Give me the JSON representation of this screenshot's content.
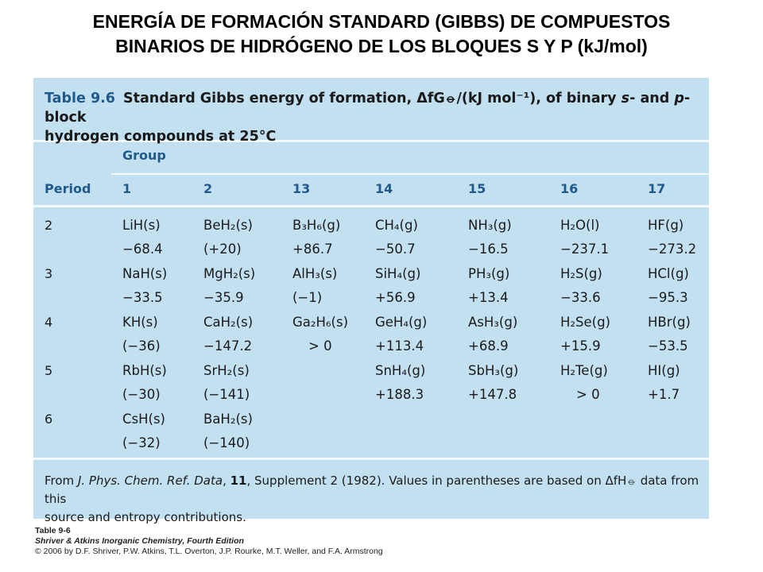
{
  "title": {
    "line1": "ENERGÍA DE FORMACIÓN STANDARD (GIBBS) DE COMPUESTOS",
    "line2": "BINARIOS DE HIDRÓGENO DE LOS BLOQUES S Y P (kJ/mol)"
  },
  "table": {
    "label": "Table 9.6",
    "caption_part1": "Standard Gibbs energy of formation, ",
    "caption_symbol": "ΔfG⦵",
    "caption_part2": "/(kJ mol⁻¹), of binary ",
    "caption_s": "s",
    "caption_part3": "- and ",
    "caption_p": "p",
    "caption_part4": "-block",
    "caption_line2": "hydrogen compounds at 25°C",
    "group_label": "Group",
    "period_label": "Period",
    "groups": [
      "1",
      "2",
      "13",
      "14",
      "15",
      "16",
      "17"
    ],
    "periods": [
      "2",
      "3",
      "4",
      "5",
      "6"
    ],
    "rows": [
      {
        "compounds": [
          "LiH(s)",
          "BeH₂(s)",
          "B₃H₆(g)",
          "CH₄(g)",
          "NH₃(g)",
          "H₂O(l)",
          "HF(g)"
        ],
        "values": [
          "−68.4",
          "(+20)",
          "+86.7",
          "−50.7",
          "−16.5",
          "−237.1",
          "−273.2"
        ]
      },
      {
        "compounds": [
          "NaH(s)",
          "MgH₂(s)",
          "AlH₃(s)",
          "SiH₄(g)",
          "PH₃(g)",
          "H₂S(g)",
          "HCl(g)"
        ],
        "values": [
          "−33.5",
          "−35.9",
          "(−1)",
          "+56.9",
          "+13.4",
          "−33.6",
          "−95.3"
        ]
      },
      {
        "compounds": [
          "KH(s)",
          "CaH₂(s)",
          "Ga₂H₆(s)",
          "GeH₄(g)",
          "AsH₃(g)",
          "H₂Se(g)",
          "HBr(g)"
        ],
        "values": [
          "(−36)",
          "−147.2",
          "> 0",
          "+113.4",
          "+68.9",
          "+15.9",
          "−53.5"
        ]
      },
      {
        "compounds": [
          "RbH(s)",
          "SrH₂(s)",
          "",
          "SnH₄(g)",
          "SbH₃(g)",
          "H₂Te(g)",
          "HI(g)"
        ],
        "values": [
          "(−30)",
          "(−141)",
          "",
          "+188.3",
          "+147.8",
          "> 0",
          "+1.7"
        ]
      },
      {
        "compounds": [
          "CsH(s)",
          "BaH₂(s)",
          "",
          "",
          "",
          "",
          ""
        ],
        "values": [
          "(−32)",
          "(−140)",
          "",
          "",
          "",
          "",
          ""
        ]
      }
    ],
    "footnote_part1": "From ",
    "footnote_journal": "J. Phys. Chem. Ref. Data",
    "footnote_part2": ", ",
    "footnote_volume": "11",
    "footnote_part3": ", Supplement 2 (1982). Values in parentheses are based on ",
    "footnote_symbol": "ΔfH⦵",
    "footnote_part4": " data from this",
    "footnote_line2": "source and entropy contributions."
  },
  "credit": {
    "line1": "Table 9-6",
    "line2": "Shriver & Atkins Inorganic Chemistry, Fourth Edition",
    "line3": "© 2006 by D.F. Shriver, P.W. Atkins, T.L. Overton, J.P. Rourke, M.T. Weller, and F.A. Armstrong"
  },
  "colors": {
    "panel_bg": "#c3e0f1",
    "header_text": "#1f5a8a",
    "rule": "#f4f9fc"
  }
}
